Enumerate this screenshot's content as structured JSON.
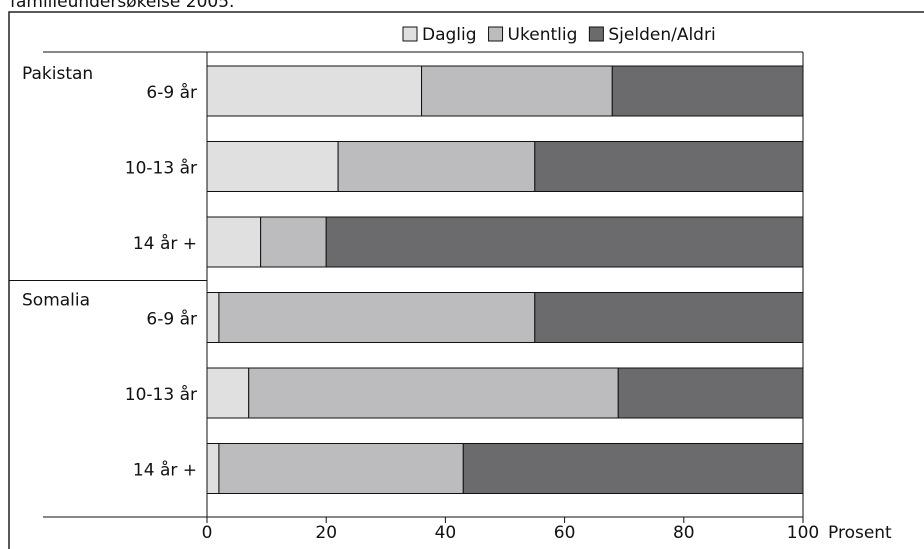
{
  "chart_data": {
    "type": "stacked-barh",
    "caption": "familieundersøkelse 2005.",
    "xlabel": "Prosent",
    "groups": [
      {
        "name": "Pakistan",
        "categories": [
          "6-9 år",
          "10-13 år",
          "14 år +"
        ]
      },
      {
        "name": "Somalia",
        "categories": [
          "6-9 år",
          "10-13 år",
          "14 år +"
        ]
      }
    ],
    "series": [
      {
        "name": "Daglig",
        "color": "#e0e0e0",
        "values": [
          36,
          22,
          9,
          2,
          7,
          2
        ]
      },
      {
        "name": "Ukentlig",
        "color": "#bcbcbe",
        "values": [
          32,
          33,
          11,
          53,
          62,
          41
        ]
      },
      {
        "name": "Sjelden/Aldri",
        "color": "#6b6b6e",
        "values": [
          32,
          45,
          80,
          45,
          31,
          57
        ]
      }
    ],
    "xlim": [
      0,
      100
    ],
    "xticks": [
      0,
      20,
      40,
      60,
      80,
      100
    ]
  }
}
